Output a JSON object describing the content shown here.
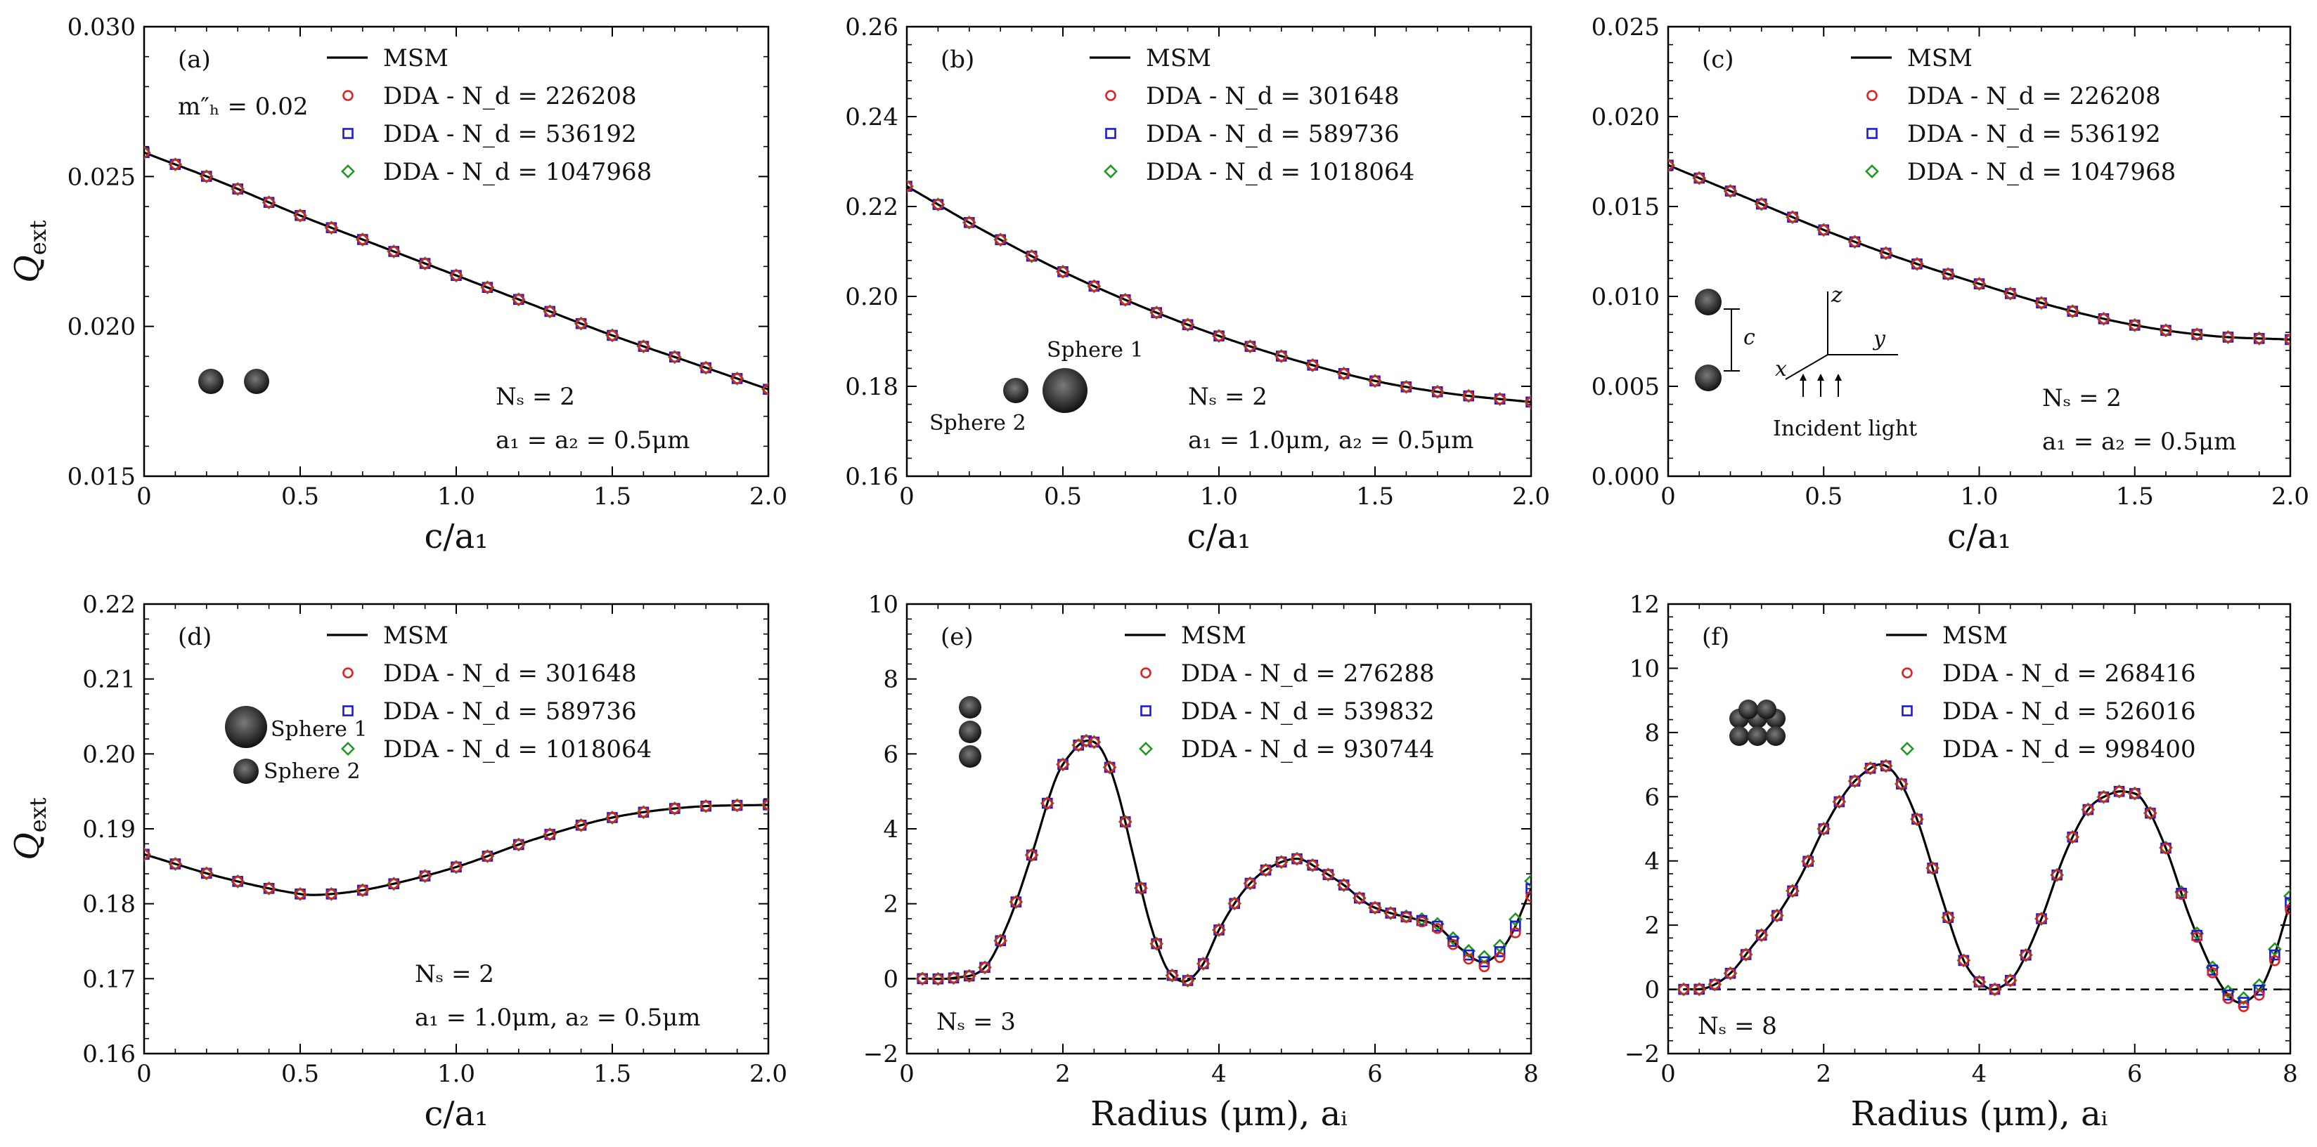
{
  "colors": {
    "msm": "#000000",
    "dda1": "#e02020",
    "dda2": "#1a1adc",
    "dda3": "#1e9a1e"
  },
  "chart_data": [
    {
      "type": "line",
      "panel": "(a)",
      "xlabel": "c/a₁",
      "ylabel": "Q_ext",
      "xlim": [
        0,
        2.0
      ],
      "ylim": [
        0.015,
        0.03
      ],
      "xticks": [
        "0",
        "0.5",
        "1.0",
        "1.5",
        "2.0"
      ],
      "yticks": [
        "0.015",
        "0.020",
        "0.025",
        "0.030"
      ],
      "zero_line": false,
      "legend": [
        "MSM",
        "DDA - N_d = 226208",
        "DDA - N_d = 536192",
        "DDA - N_d = 1047968"
      ],
      "annotations": [
        "m″ₕ = 0.02",
        "Nₛ = 2",
        "a₁ = a₂ = 0.5μm"
      ],
      "msm": {
        "x": [
          0,
          0.25,
          0.5,
          0.75,
          1.0,
          1.25,
          1.5,
          1.75,
          2.0
        ],
        "y": [
          0.0258,
          0.0248,
          0.0237,
          0.0227,
          0.0217,
          0.0207,
          0.0197,
          0.0188,
          0.0179
        ]
      },
      "dda_x": [
        0,
        0.1,
        0.2,
        0.3,
        0.4,
        0.5,
        0.6,
        0.7,
        0.8,
        0.9,
        1.0,
        1.1,
        1.2,
        1.3,
        1.4,
        1.5,
        1.6,
        1.7,
        1.8,
        1.9,
        2.0
      ]
    },
    {
      "type": "line",
      "panel": "(b)",
      "xlabel": "c/a₁",
      "ylabel": "",
      "xlim": [
        0,
        2.0
      ],
      "ylim": [
        0.16,
        0.26
      ],
      "xticks": [
        "0",
        "0.5",
        "1.0",
        "1.5",
        "2.0"
      ],
      "yticks": [
        "0.16",
        "0.18",
        "0.20",
        "0.22",
        "0.24",
        "0.26"
      ],
      "zero_line": false,
      "legend": [
        "MSM",
        "DDA - N_d = 301648",
        "DDA - N_d = 589736",
        "DDA - N_d = 1018064"
      ],
      "annotations": [
        "Sphere 1",
        "Sphere 2",
        "Nₛ = 2",
        "a₁ = 1.0μm, a₂ = 0.5μm"
      ],
      "msm": {
        "x": [
          0,
          0.25,
          0.5,
          0.75,
          1.0,
          1.25,
          1.5,
          1.75,
          2.0
        ],
        "y": [
          0.2245,
          0.2145,
          0.2055,
          0.1978,
          0.1912,
          0.1857,
          0.1812,
          0.1783,
          0.1765
        ]
      },
      "dda_x": [
        0,
        0.1,
        0.2,
        0.3,
        0.4,
        0.5,
        0.6,
        0.7,
        0.8,
        0.9,
        1.0,
        1.1,
        1.2,
        1.3,
        1.4,
        1.5,
        1.6,
        1.7,
        1.8,
        1.9,
        2.0
      ]
    },
    {
      "type": "line",
      "panel": "(c)",
      "xlabel": "c/a₁",
      "ylabel": "",
      "xlim": [
        0,
        2.0
      ],
      "ylim": [
        0.0,
        0.025
      ],
      "xticks": [
        "0",
        "0.5",
        "1.0",
        "1.5",
        "2.0"
      ],
      "yticks": [
        "0.000",
        "0.005",
        "0.010",
        "0.015",
        "0.020",
        "0.025"
      ],
      "zero_line": false,
      "legend": [
        "MSM",
        "DDA - N_d = 226208",
        "DDA - N_d = 536192",
        "DDA - N_d = 1047968"
      ],
      "annotations": [
        "Incident light",
        "Nₛ = 2",
        "a₁ = a₂ = 0.5μm"
      ],
      "axis_glyphs": [
        "z",
        "y",
        "x",
        "c"
      ],
      "msm": {
        "x": [
          0,
          0.25,
          0.5,
          0.75,
          1.0,
          1.25,
          1.5,
          1.75,
          2.0
        ],
        "y": [
          0.0173,
          0.0155,
          0.0137,
          0.0121,
          0.0107,
          0.0094,
          0.0084,
          0.0078,
          0.0076
        ]
      },
      "dda_x": [
        0,
        0.1,
        0.2,
        0.3,
        0.4,
        0.5,
        0.6,
        0.7,
        0.8,
        0.9,
        1.0,
        1.1,
        1.2,
        1.3,
        1.4,
        1.5,
        1.6,
        1.7,
        1.8,
        1.9,
        2.0
      ]
    },
    {
      "type": "line",
      "panel": "(d)",
      "xlabel": "c/a₁",
      "ylabel": "Q_ext",
      "xlim": [
        0,
        2.0
      ],
      "ylim": [
        0.16,
        0.22
      ],
      "xticks": [
        "0",
        "0.5",
        "1.0",
        "1.5",
        "2.0"
      ],
      "yticks": [
        "0.16",
        "0.17",
        "0.18",
        "0.19",
        "0.20",
        "0.21",
        "0.22"
      ],
      "zero_line": false,
      "legend": [
        "MSM",
        "DDA - N_d = 301648",
        "DDA - N_d = 589736",
        "DDA - N_d = 1018064"
      ],
      "annotations": [
        "Sphere 1",
        "Sphere 2",
        "Nₛ = 2",
        "a₁ = 1.0μm, a₂ = 0.5μm"
      ],
      "msm": {
        "x": [
          0,
          0.25,
          0.5,
          0.6,
          0.75,
          1.0,
          1.25,
          1.5,
          1.75,
          2.0
        ],
        "y": [
          0.1866,
          0.1835,
          0.1813,
          0.1813,
          0.1822,
          0.1849,
          0.1886,
          0.1915,
          0.1929,
          0.1932
        ]
      },
      "dda_x": [
        0,
        0.1,
        0.2,
        0.3,
        0.4,
        0.5,
        0.6,
        0.7,
        0.8,
        0.9,
        1.0,
        1.1,
        1.2,
        1.3,
        1.4,
        1.5,
        1.6,
        1.7,
        1.8,
        1.9,
        2.0
      ]
    },
    {
      "type": "line",
      "panel": "(e)",
      "xlabel": "Radius (μm), aᵢ",
      "ylabel": "",
      "xlim": [
        0,
        8
      ],
      "ylim": [
        -2,
        10
      ],
      "xticks": [
        "0",
        "2",
        "4",
        "6",
        "8"
      ],
      "yticks": [
        "−2",
        "0",
        "2",
        "4",
        "6",
        "8",
        "10"
      ],
      "zero_line": true,
      "legend": [
        "MSM",
        "DDA - N_d = 276288",
        "DDA - N_d = 539832",
        "DDA - N_d = 930744"
      ],
      "annotations": [
        "Nₛ = 3"
      ],
      "msm": {
        "x": [
          0.2,
          0.6,
          1.0,
          1.3,
          1.6,
          1.9,
          2.1,
          2.3,
          2.5,
          2.7,
          2.9,
          3.1,
          3.3,
          3.45,
          3.6,
          3.8,
          4.0,
          4.3,
          4.6,
          5.0,
          5.3,
          5.6,
          5.9,
          6.2,
          6.5,
          6.8,
          7.1,
          7.4,
          7.7,
          8.0
        ],
        "y": [
          0.0,
          0.02,
          0.3,
          1.5,
          3.3,
          5.3,
          6.0,
          6.35,
          6.1,
          5.0,
          3.3,
          1.6,
          0.4,
          0.0,
          -0.05,
          0.4,
          1.3,
          2.3,
          2.9,
          3.2,
          2.9,
          2.5,
          2.0,
          1.75,
          1.6,
          1.4,
          0.8,
          0.45,
          1.0,
          2.4
        ]
      },
      "dda_x": [
        0.2,
        0.4,
        0.6,
        0.8,
        1.0,
        1.2,
        1.4,
        1.6,
        1.8,
        2.0,
        2.2,
        2.3,
        2.4,
        2.6,
        2.8,
        3.0,
        3.2,
        3.4,
        3.6,
        3.8,
        4.0,
        4.2,
        4.4,
        4.6,
        4.8,
        5.0,
        5.2,
        5.4,
        5.6,
        5.8,
        6.0,
        6.2,
        6.4,
        6.6,
        6.8,
        7.0,
        7.2,
        7.4,
        7.6,
        7.8,
        8.0
      ]
    },
    {
      "type": "line",
      "panel": "(f)",
      "xlabel": "Radius (μm), aᵢ",
      "ylabel": "",
      "xlim": [
        0,
        8
      ],
      "ylim": [
        -2,
        12
      ],
      "xticks": [
        "0",
        "2",
        "4",
        "6",
        "8"
      ],
      "yticks": [
        "−2",
        "0",
        "2",
        "4",
        "6",
        "8",
        "10",
        "12"
      ],
      "zero_line": true,
      "legend": [
        "MSM",
        "DDA - N_d = 268416",
        "DDA - N_d = 526016",
        "DDA - N_d = 998400"
      ],
      "annotations": [
        "Nₛ = 8"
      ],
      "msm": {
        "x": [
          0.2,
          0.5,
          0.8,
          1.1,
          1.4,
          1.7,
          2.0,
          2.3,
          2.55,
          2.75,
          2.95,
          3.2,
          3.5,
          3.8,
          4.1,
          4.3,
          4.5,
          4.8,
          5.1,
          5.4,
          5.7,
          5.9,
          6.1,
          6.4,
          6.7,
          7.0,
          7.25,
          7.45,
          7.7,
          8.0
        ],
        "y": [
          0.0,
          0.05,
          0.5,
          1.4,
          2.3,
          3.5,
          5.0,
          6.2,
          6.8,
          7.0,
          6.6,
          5.3,
          3.0,
          0.9,
          0.05,
          0.1,
          0.6,
          2.2,
          4.2,
          5.6,
          6.1,
          6.15,
          5.9,
          4.4,
          2.3,
          0.6,
          -0.3,
          -0.35,
          0.4,
          2.7
        ]
      },
      "dda_x": [
        0.2,
        0.4,
        0.6,
        0.8,
        1.0,
        1.2,
        1.4,
        1.6,
        1.8,
        2.0,
        2.2,
        2.4,
        2.6,
        2.8,
        3.0,
        3.2,
        3.4,
        3.6,
        3.8,
        4.0,
        4.2,
        4.4,
        4.6,
        4.8,
        5.0,
        5.2,
        5.4,
        5.6,
        5.8,
        6.0,
        6.2,
        6.4,
        6.6,
        6.8,
        7.0,
        7.2,
        7.4,
        7.6,
        7.8,
        8.0
      ]
    }
  ]
}
